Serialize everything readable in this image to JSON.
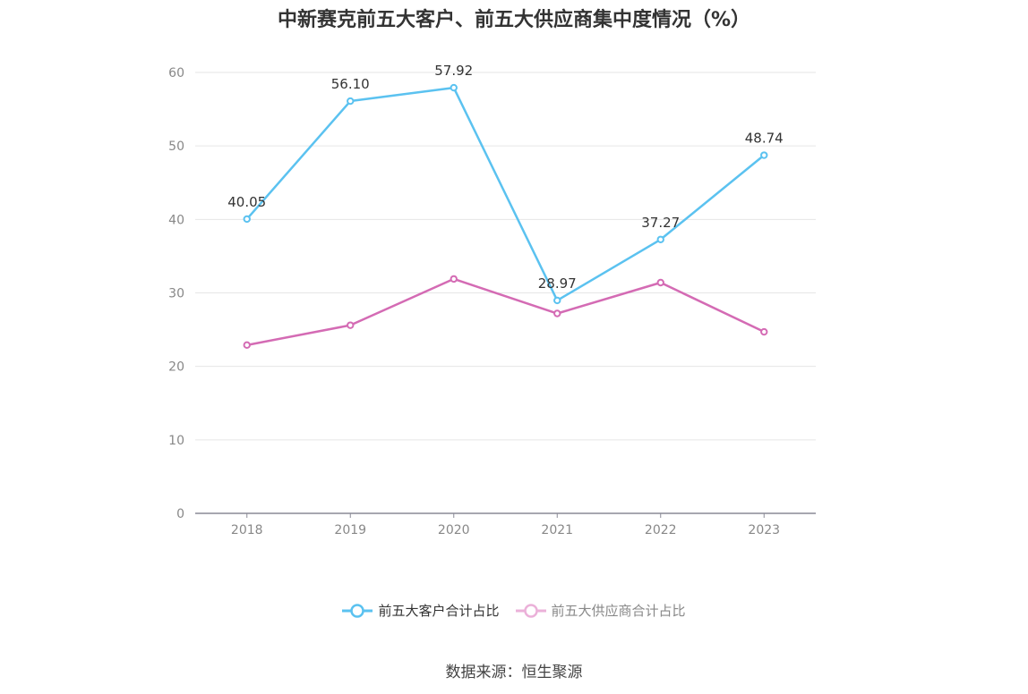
{
  "chart_data": {
    "type": "line",
    "title": "中新赛克前五大客户、前五大供应商集中度情况（%）",
    "categories": [
      "2018",
      "2019",
      "2020",
      "2021",
      "2022",
      "2023"
    ],
    "series": [
      {
        "name": "前五大客户合计占比",
        "values": [
          40.05,
          56.1,
          57.92,
          28.97,
          37.27,
          48.74
        ],
        "color": "#5bc2f0",
        "show_labels": true,
        "labels": [
          "40.05",
          "56.10",
          "57.92",
          "28.97",
          "37.27",
          "48.74"
        ]
      },
      {
        "name": "前五大供应商合计占比",
        "values": [
          22.9,
          25.6,
          31.9,
          27.2,
          31.4,
          24.7
        ],
        "color": "#d46bb4",
        "show_labels": false
      }
    ],
    "y_ticks": [
      "0",
      "10",
      "20",
      "30",
      "40",
      "50",
      "60"
    ],
    "ylim": [
      0,
      60
    ],
    "grid": true,
    "legend_position": "bottom"
  },
  "source_text": "数据来源：恒生聚源"
}
